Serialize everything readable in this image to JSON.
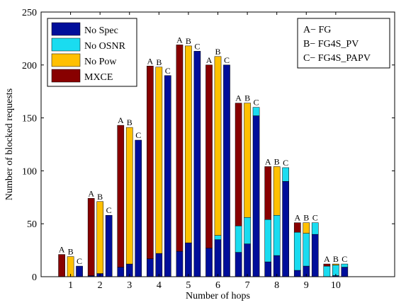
{
  "chart_data": {
    "type": "bar",
    "xlabel": "Number of hops",
    "ylabel": "Number of  blocked requests",
    "xlim": [
      0,
      12
    ],
    "ylim": [
      0,
      250
    ],
    "yticks": [
      0,
      50,
      100,
      150,
      200,
      250
    ],
    "categories": [
      "1",
      "2",
      "3",
      "4",
      "5",
      "6",
      "7",
      "8",
      "9",
      "10"
    ],
    "group_labels": [
      "A",
      "B",
      "C"
    ],
    "schemes_legend": [
      "A− FG",
      "B− FG4S_PV",
      "C− FG4S_PAPV"
    ],
    "series": [
      {
        "name": "No Spec",
        "color": "#000e9a",
        "values": {
          "A": [
            0,
            1,
            9,
            17,
            24,
            27,
            23,
            14,
            6,
            0
          ],
          "B": [
            0,
            3,
            12,
            22,
            32,
            35,
            31,
            20,
            10,
            1
          ],
          "C": [
            10,
            58,
            129,
            190,
            213,
            200,
            152,
            90,
            40,
            9
          ]
        }
      },
      {
        "name": "No OSNR",
        "color": "#1adcf0",
        "values": {
          "A": [
            0,
            0,
            0,
            0,
            0,
            0,
            25,
            40,
            36,
            10
          ],
          "B": [
            0,
            0,
            0,
            0,
            0,
            4,
            25,
            38,
            31,
            10
          ],
          "C": [
            0,
            0,
            0,
            0,
            0,
            0,
            8,
            13,
            11,
            3
          ]
        }
      },
      {
        "name": "No Pow",
        "color": "#ffc000",
        "values": {
          "A": [
            0,
            0,
            0,
            0,
            0,
            0,
            0,
            0,
            0,
            0
          ],
          "B": [
            19,
            68,
            129,
            176,
            186,
            169,
            108,
            46,
            10,
            1
          ],
          "C": [
            0,
            0,
            0,
            0,
            0,
            0,
            0,
            0,
            0,
            0
          ]
        }
      },
      {
        "name": "MXCE",
        "color": "#880000",
        "values": {
          "A": [
            21,
            73,
            134,
            182,
            195,
            173,
            116,
            50,
            9,
            2
          ],
          "B": [
            0,
            0,
            0,
            0,
            0,
            0,
            0,
            0,
            0,
            0
          ],
          "C": [
            0,
            0,
            0,
            0,
            0,
            0,
            0,
            0,
            0,
            0
          ]
        }
      }
    ]
  }
}
